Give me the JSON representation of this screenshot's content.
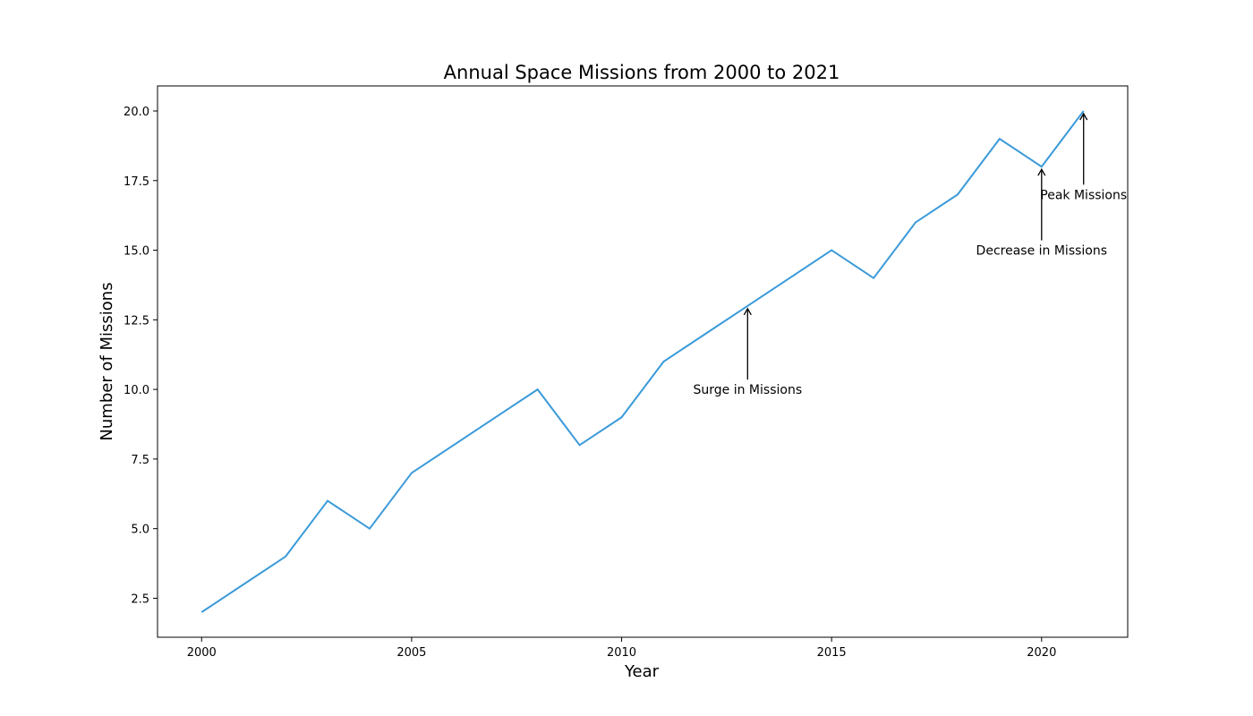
{
  "chart_data": {
    "type": "line",
    "title": "Annual Space Missions from 2000 to 2021",
    "xlabel": "Year",
    "ylabel": "Number of Missions",
    "x": [
      2000,
      2001,
      2002,
      2003,
      2004,
      2005,
      2006,
      2007,
      2008,
      2009,
      2010,
      2011,
      2012,
      2013,
      2014,
      2015,
      2016,
      2017,
      2018,
      2019,
      2020,
      2021
    ],
    "series": [
      {
        "values": [
          2,
          3,
          4,
          6,
          5,
          7,
          8,
          9,
          10,
          8,
          9,
          11,
          12,
          13,
          14,
          15,
          14,
          16,
          17,
          19,
          18,
          20
        ],
        "color": "#3a9ad9"
      }
    ],
    "xlim": [
      1998.95,
      2022.05
    ],
    "ylim": [
      1.1,
      20.9
    ],
    "xticks": [
      2000,
      2005,
      2010,
      2015,
      2020
    ],
    "xtick_labels": [
      "2000",
      "2005",
      "2010",
      "2015",
      "2020"
    ],
    "yticks": [
      2.5,
      5.0,
      7.5,
      10.0,
      12.5,
      15.0,
      17.5,
      20.0
    ],
    "ytick_labels": [
      "2.5",
      "5.0",
      "7.5",
      "10.0",
      "12.5",
      "15.0",
      "17.5",
      "20.0"
    ],
    "grid": false,
    "annotations": [
      {
        "text": "Surge in Missions",
        "point": [
          2013,
          13
        ],
        "text_pos": [
          2013,
          10
        ]
      },
      {
        "text": "Decrease in Missions",
        "point": [
          2020,
          18
        ],
        "text_pos": [
          2020,
          15
        ]
      },
      {
        "text": "Peak Missions",
        "point": [
          2021,
          20
        ],
        "text_pos": [
          2021,
          17
        ]
      }
    ]
  }
}
